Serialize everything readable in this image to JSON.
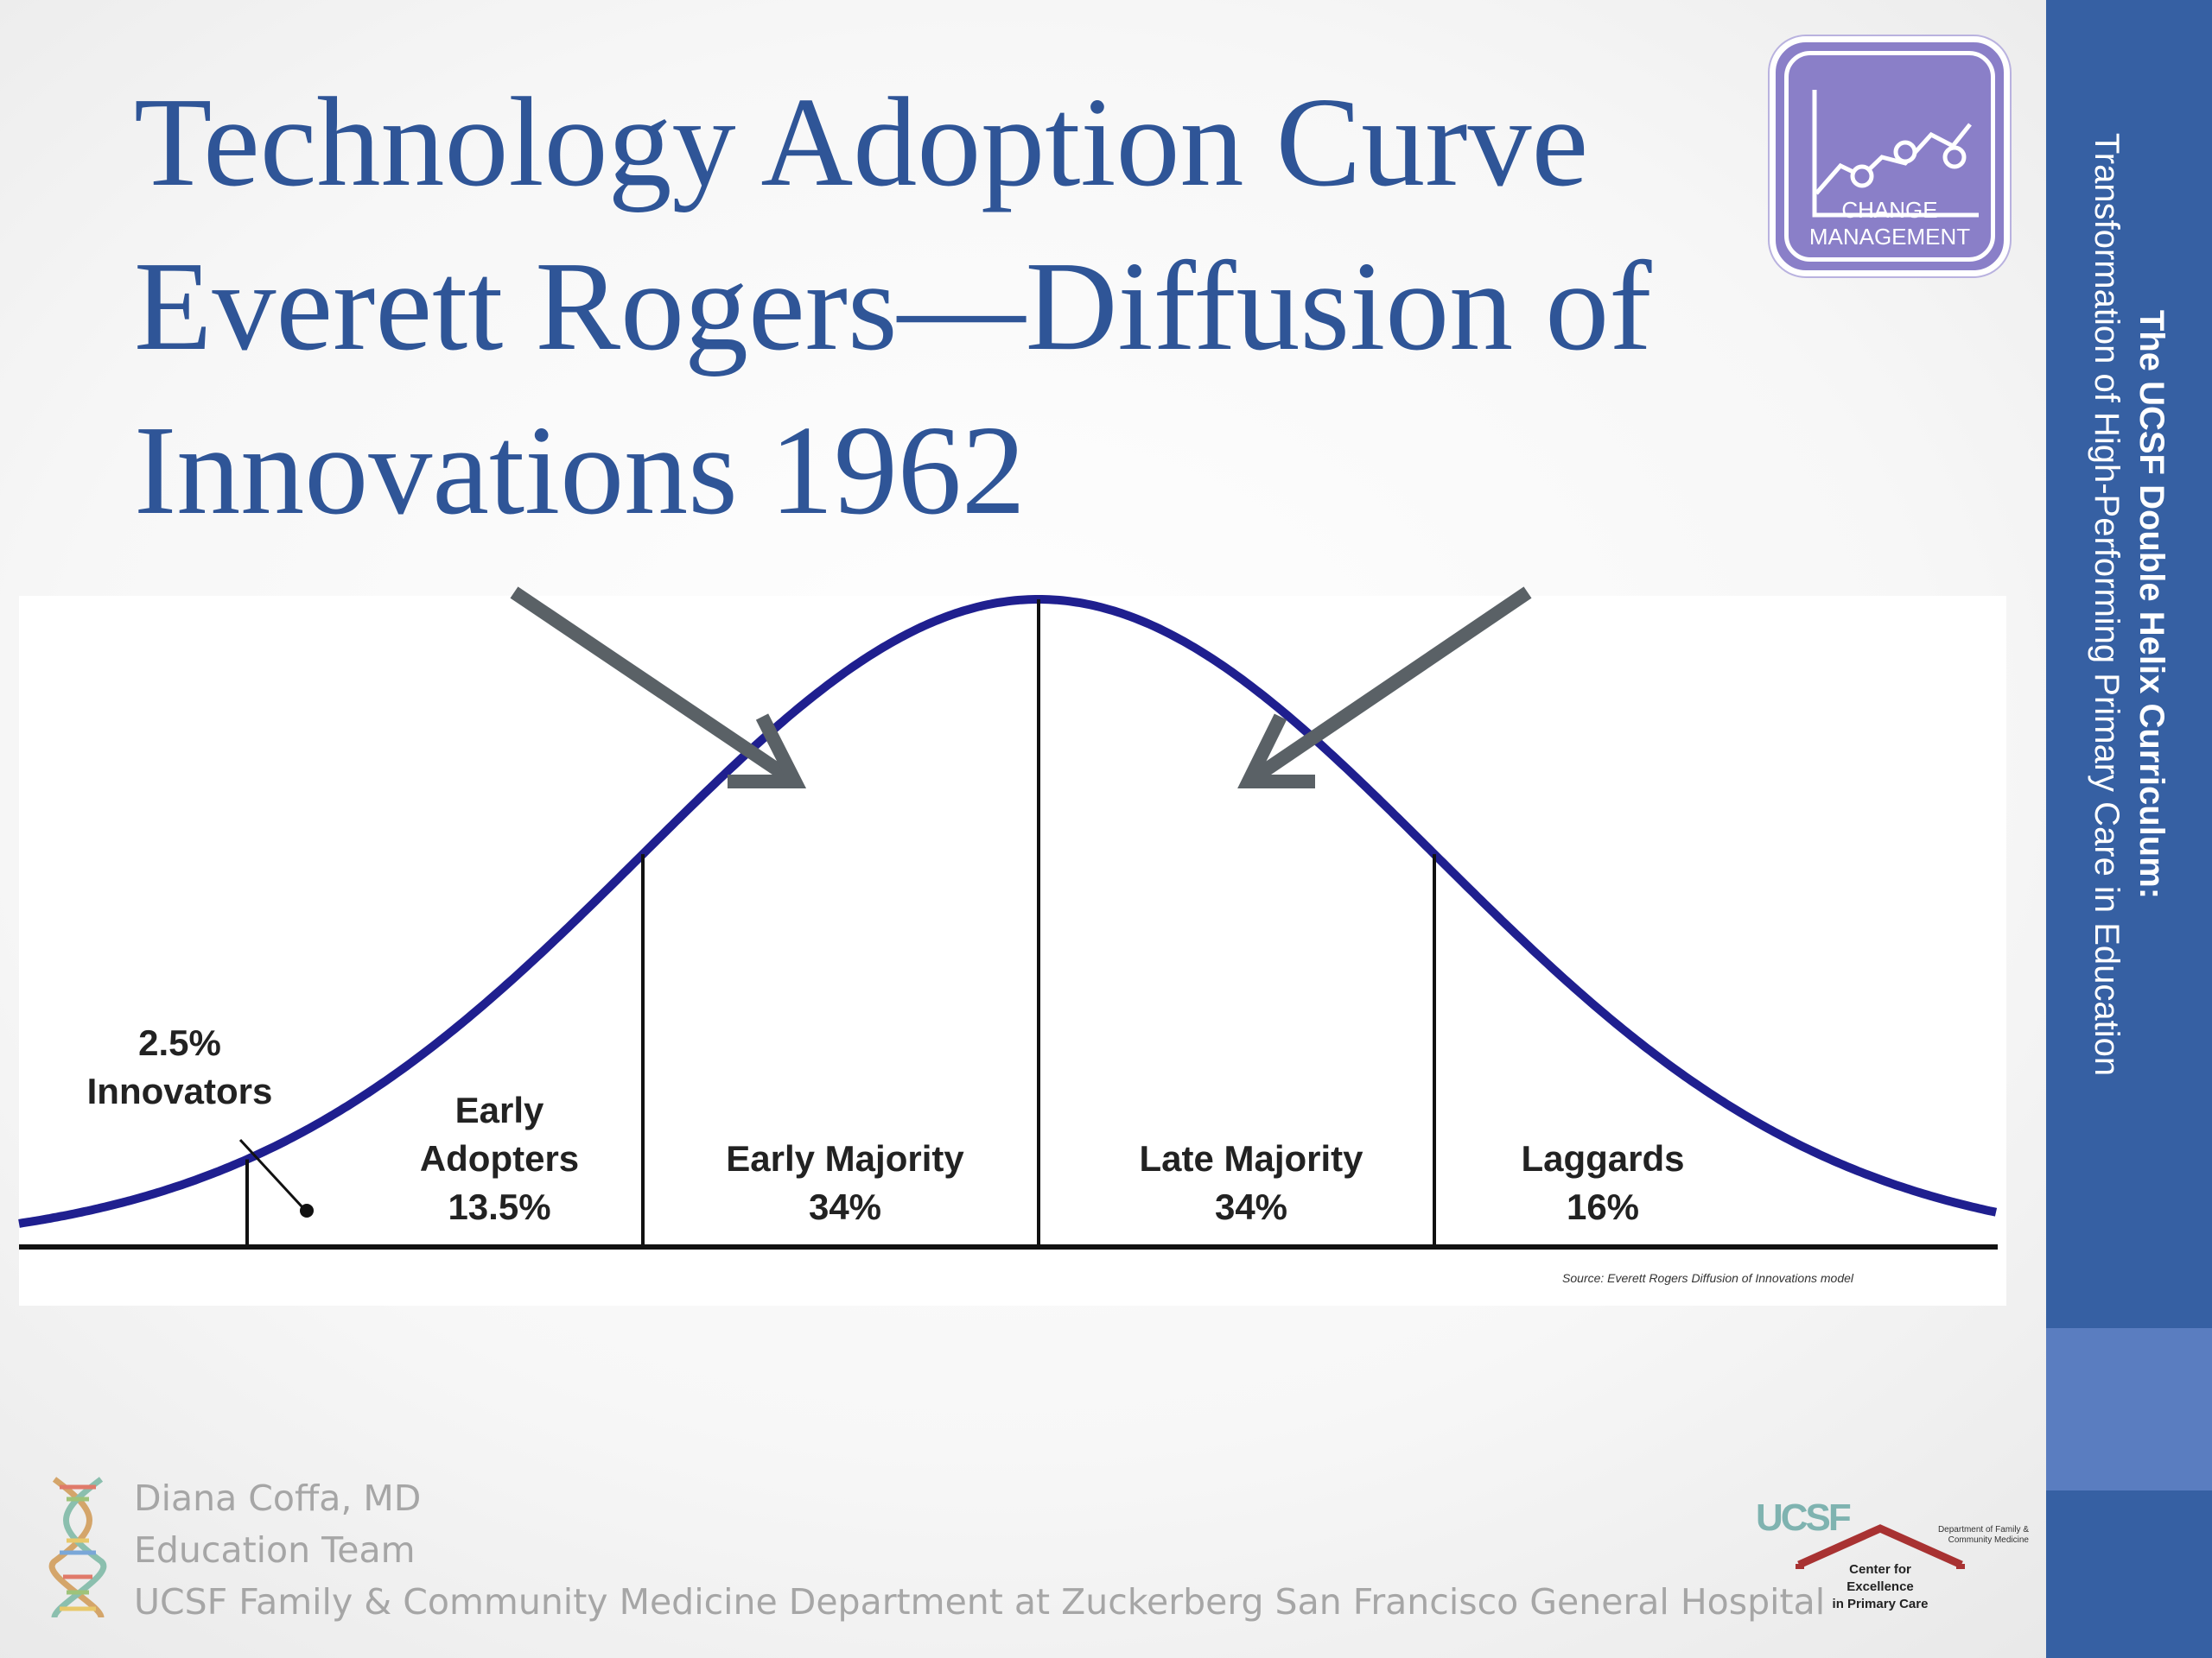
{
  "slide": {
    "title_lines": [
      "Technology Adoption Curve",
      "Everett Rogers—Diffusion of",
      "Innovations 1962"
    ]
  },
  "badge": {
    "line1": "CHANGE",
    "line2": "MANAGEMENT",
    "color": "#8a7fc8"
  },
  "sidebar": {
    "title": "The UCSF Double Helix Curriculum:",
    "subtitle": "Transformation of High-Performing Primary Care in Education",
    "color": "#3660a3"
  },
  "chart_data": {
    "type": "area",
    "segments": [
      {
        "label": "Innovators",
        "value_label": "2.5%",
        "value": 2.5
      },
      {
        "label": "Early Adopters",
        "value_label": "13.5%",
        "value": 13.5
      },
      {
        "label": "Early Majority",
        "value_label": "34%",
        "value": 34
      },
      {
        "label": "Late Majority",
        "value_label": "34%",
        "value": 34
      },
      {
        "label": "Laggards",
        "value_label": "16%",
        "value": 16
      }
    ],
    "segment_texts": {
      "innovators_pct": "2.5%",
      "innovators": "Innovators",
      "early_adopters_1": "Early",
      "early_adopters_2": "Adopters",
      "early_adopters_pct": "13.5%",
      "early_majority": "Early Majority",
      "early_majority_pct": "34%",
      "late_majority": "Late Majority",
      "late_majority_pct": "34%",
      "laggards": "Laggards",
      "laggards_pct": "16%"
    },
    "source_note": "Source: Everett Rogers Diffusion of Innovations model",
    "curve_color": "#1f1f8f",
    "arrow_color": "#5a6166"
  },
  "footer": {
    "author": "Diana Coffa, MD",
    "team": "Education Team",
    "department": "UCSF Family & Community Medicine Department at Zuckerberg San Francisco General Hospital"
  },
  "partner_logo": {
    "ucsf": "UCSF",
    "dept_line1": "Department of Family &",
    "dept_line2": "Community Medicine",
    "center_line1": "Center for",
    "center_line2": "Excellence",
    "center_line3": "in Primary Care"
  }
}
